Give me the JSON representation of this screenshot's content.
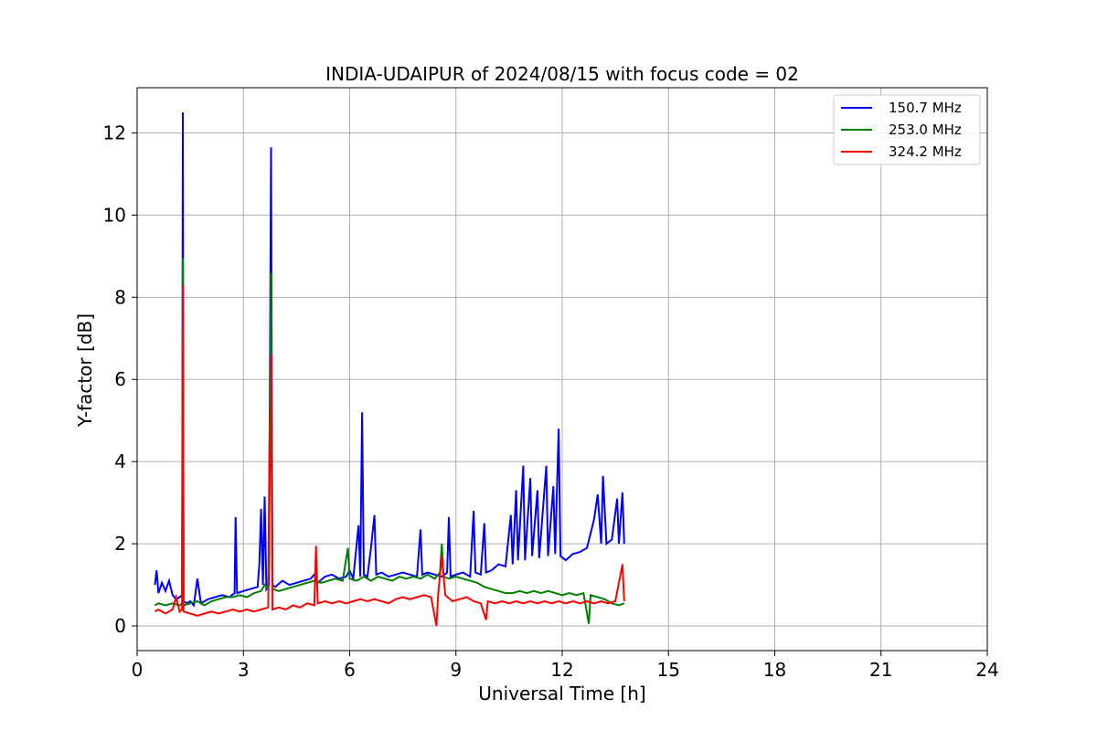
{
  "chart_data": {
    "type": "line",
    "title": "INDIA-UDAIPUR of 2024/08/15 with focus code = 02",
    "xlabel": "Universal Time [h]",
    "ylabel": "Y-factor [dB]",
    "xlim": [
      0,
      24
    ],
    "ylim": [
      -0.6,
      13.1
    ],
    "xticks": [
      0,
      3,
      6,
      9,
      12,
      15,
      18,
      21,
      24
    ],
    "yticks": [
      0,
      2,
      4,
      6,
      8,
      10,
      12
    ],
    "grid": true,
    "legend_position": "top-right",
    "series": [
      {
        "name": "150.7 MHz",
        "color": "#0000ff",
        "points": [
          [
            0.5,
            1.0
          ],
          [
            0.55,
            1.35
          ],
          [
            0.6,
            0.8
          ],
          [
            0.7,
            1.05
          ],
          [
            0.8,
            0.85
          ],
          [
            0.9,
            1.1
          ],
          [
            1.0,
            0.75
          ],
          [
            1.1,
            0.65
          ],
          [
            1.2,
            0.7
          ],
          [
            1.27,
            0.75
          ],
          [
            1.29,
            12.5
          ],
          [
            1.31,
            0.6
          ],
          [
            1.4,
            0.55
          ],
          [
            1.5,
            0.6
          ],
          [
            1.6,
            0.5
          ],
          [
            1.7,
            1.15
          ],
          [
            1.8,
            0.55
          ],
          [
            2.0,
            0.65
          ],
          [
            2.2,
            0.7
          ],
          [
            2.4,
            0.75
          ],
          [
            2.6,
            0.7
          ],
          [
            2.75,
            0.8
          ],
          [
            2.78,
            2.65
          ],
          [
            2.82,
            0.8
          ],
          [
            3.0,
            0.85
          ],
          [
            3.2,
            0.9
          ],
          [
            3.4,
            0.95
          ],
          [
            3.45,
            1.5
          ],
          [
            3.5,
            2.85
          ],
          [
            3.55,
            1.0
          ],
          [
            3.6,
            3.15
          ],
          [
            3.65,
            0.9
          ],
          [
            3.72,
            1.0
          ],
          [
            3.78,
            11.65
          ],
          [
            3.82,
            1.0
          ],
          [
            3.9,
            0.95
          ],
          [
            4.1,
            1.1
          ],
          [
            4.3,
            1.0
          ],
          [
            4.5,
            1.05
          ],
          [
            4.7,
            1.1
          ],
          [
            4.9,
            1.15
          ],
          [
            5.0,
            1.25
          ],
          [
            5.1,
            1.05
          ],
          [
            5.3,
            1.2
          ],
          [
            5.5,
            1.25
          ],
          [
            5.7,
            1.15
          ],
          [
            5.9,
            1.2
          ],
          [
            6.0,
            1.35
          ],
          [
            6.1,
            1.15
          ],
          [
            6.25,
            2.45
          ],
          [
            6.3,
            1.2
          ],
          [
            6.35,
            5.2
          ],
          [
            6.4,
            1.25
          ],
          [
            6.5,
            1.2
          ],
          [
            6.6,
            1.9
          ],
          [
            6.7,
            2.7
          ],
          [
            6.75,
            1.25
          ],
          [
            6.9,
            1.3
          ],
          [
            7.1,
            1.2
          ],
          [
            7.3,
            1.25
          ],
          [
            7.5,
            1.3
          ],
          [
            7.7,
            1.25
          ],
          [
            7.9,
            1.2
          ],
          [
            8.0,
            2.35
          ],
          [
            8.05,
            1.25
          ],
          [
            8.2,
            1.3
          ],
          [
            8.4,
            1.25
          ],
          [
            8.6,
            1.2
          ],
          [
            8.75,
            1.3
          ],
          [
            8.8,
            2.65
          ],
          [
            8.85,
            1.2
          ],
          [
            9.0,
            1.25
          ],
          [
            9.2,
            1.3
          ],
          [
            9.4,
            1.2
          ],
          [
            9.5,
            2.8
          ],
          [
            9.55,
            1.3
          ],
          [
            9.7,
            1.25
          ],
          [
            9.8,
            2.5
          ],
          [
            9.85,
            1.3
          ],
          [
            10.0,
            1.35
          ],
          [
            10.2,
            1.5
          ],
          [
            10.4,
            1.45
          ],
          [
            10.55,
            2.7
          ],
          [
            10.6,
            1.5
          ],
          [
            10.7,
            3.3
          ],
          [
            10.75,
            1.6
          ],
          [
            10.9,
            3.9
          ],
          [
            10.95,
            1.6
          ],
          [
            11.1,
            3.6
          ],
          [
            11.15,
            1.7
          ],
          [
            11.3,
            3.3
          ],
          [
            11.35,
            1.65
          ],
          [
            11.55,
            3.9
          ],
          [
            11.6,
            1.7
          ],
          [
            11.75,
            3.4
          ],
          [
            11.8,
            1.75
          ],
          [
            11.9,
            4.8
          ],
          [
            11.95,
            1.7
          ],
          [
            12.1,
            1.6
          ],
          [
            12.3,
            1.75
          ],
          [
            12.5,
            1.8
          ],
          [
            12.7,
            1.9
          ],
          [
            12.9,
            2.6
          ],
          [
            13.0,
            3.2
          ],
          [
            13.1,
            2.0
          ],
          [
            13.15,
            3.65
          ],
          [
            13.25,
            2.0
          ],
          [
            13.4,
            2.1
          ],
          [
            13.55,
            3.1
          ],
          [
            13.6,
            2.0
          ],
          [
            13.7,
            3.25
          ],
          [
            13.75,
            2.0
          ]
        ]
      },
      {
        "name": "253.0 MHz",
        "color": "#008000",
        "points": [
          [
            0.5,
            0.5
          ],
          [
            0.6,
            0.55
          ],
          [
            0.8,
            0.5
          ],
          [
            1.0,
            0.55
          ],
          [
            1.2,
            0.5
          ],
          [
            1.27,
            0.55
          ],
          [
            1.29,
            8.95
          ],
          [
            1.31,
            0.5
          ],
          [
            1.5,
            0.55
          ],
          [
            1.7,
            0.6
          ],
          [
            1.9,
            0.5
          ],
          [
            2.1,
            0.6
          ],
          [
            2.3,
            0.65
          ],
          [
            2.5,
            0.7
          ],
          [
            2.7,
            0.7
          ],
          [
            2.9,
            0.75
          ],
          [
            3.1,
            0.7
          ],
          [
            3.3,
            0.8
          ],
          [
            3.5,
            0.85
          ],
          [
            3.6,
            1.0
          ],
          [
            3.7,
            0.9
          ],
          [
            3.78,
            8.6
          ],
          [
            3.82,
            0.9
          ],
          [
            4.0,
            0.85
          ],
          [
            4.2,
            0.9
          ],
          [
            4.4,
            0.95
          ],
          [
            4.6,
            1.0
          ],
          [
            4.8,
            1.05
          ],
          [
            5.0,
            1.1
          ],
          [
            5.2,
            1.05
          ],
          [
            5.4,
            1.1
          ],
          [
            5.6,
            1.15
          ],
          [
            5.8,
            1.1
          ],
          [
            5.95,
            1.9
          ],
          [
            6.0,
            1.15
          ],
          [
            6.2,
            1.1
          ],
          [
            6.4,
            1.2
          ],
          [
            6.6,
            1.1
          ],
          [
            6.8,
            1.2
          ],
          [
            7.0,
            1.15
          ],
          [
            7.2,
            1.1
          ],
          [
            7.4,
            1.2
          ],
          [
            7.6,
            1.15
          ],
          [
            7.8,
            1.2
          ],
          [
            8.0,
            1.15
          ],
          [
            8.2,
            1.25
          ],
          [
            8.4,
            1.15
          ],
          [
            8.55,
            1.3
          ],
          [
            8.6,
            2.0
          ],
          [
            8.65,
            1.2
          ],
          [
            8.8,
            1.15
          ],
          [
            9.0,
            1.2
          ],
          [
            9.2,
            1.15
          ],
          [
            9.4,
            1.1
          ],
          [
            9.6,
            1.05
          ],
          [
            9.8,
            0.95
          ],
          [
            10.0,
            0.9
          ],
          [
            10.2,
            0.85
          ],
          [
            10.4,
            0.8
          ],
          [
            10.6,
            0.8
          ],
          [
            10.8,
            0.85
          ],
          [
            11.0,
            0.8
          ],
          [
            11.2,
            0.85
          ],
          [
            11.4,
            0.8
          ],
          [
            11.6,
            0.85
          ],
          [
            11.8,
            0.8
          ],
          [
            12.0,
            0.75
          ],
          [
            12.2,
            0.8
          ],
          [
            12.4,
            0.75
          ],
          [
            12.6,
            0.8
          ],
          [
            12.75,
            0.05
          ],
          [
            12.8,
            0.75
          ],
          [
            13.0,
            0.7
          ],
          [
            13.2,
            0.65
          ],
          [
            13.4,
            0.55
          ],
          [
            13.6,
            0.5
          ],
          [
            13.75,
            0.55
          ]
        ]
      },
      {
        "name": "324.2 MHz",
        "color": "#ff0000",
        "points": [
          [
            0.5,
            0.35
          ],
          [
            0.6,
            0.4
          ],
          [
            0.8,
            0.3
          ],
          [
            1.0,
            0.4
          ],
          [
            1.1,
            0.7
          ],
          [
            1.2,
            0.35
          ],
          [
            1.27,
            0.4
          ],
          [
            1.29,
            8.3
          ],
          [
            1.31,
            0.35
          ],
          [
            1.5,
            0.3
          ],
          [
            1.7,
            0.25
          ],
          [
            1.9,
            0.3
          ],
          [
            2.1,
            0.35
          ],
          [
            2.3,
            0.3
          ],
          [
            2.5,
            0.35
          ],
          [
            2.7,
            0.4
          ],
          [
            2.9,
            0.35
          ],
          [
            3.1,
            0.4
          ],
          [
            3.3,
            0.35
          ],
          [
            3.5,
            0.4
          ],
          [
            3.7,
            0.45
          ],
          [
            3.78,
            6.6
          ],
          [
            3.82,
            0.4
          ],
          [
            4.0,
            0.45
          ],
          [
            4.2,
            0.4
          ],
          [
            4.4,
            0.5
          ],
          [
            4.6,
            0.45
          ],
          [
            4.8,
            0.55
          ],
          [
            5.0,
            0.5
          ],
          [
            5.05,
            1.95
          ],
          [
            5.1,
            0.55
          ],
          [
            5.3,
            0.6
          ],
          [
            5.5,
            0.55
          ],
          [
            5.7,
            0.6
          ],
          [
            5.9,
            0.55
          ],
          [
            6.1,
            0.6
          ],
          [
            6.3,
            0.65
          ],
          [
            6.5,
            0.6
          ],
          [
            6.7,
            0.65
          ],
          [
            6.9,
            0.6
          ],
          [
            7.1,
            0.55
          ],
          [
            7.3,
            0.65
          ],
          [
            7.5,
            0.7
          ],
          [
            7.7,
            0.65
          ],
          [
            7.9,
            0.7
          ],
          [
            8.1,
            0.75
          ],
          [
            8.3,
            0.7
          ],
          [
            8.45,
            0.0
          ],
          [
            8.5,
            0.8
          ],
          [
            8.6,
            1.7
          ],
          [
            8.7,
            0.75
          ],
          [
            8.9,
            0.6
          ],
          [
            9.1,
            0.65
          ],
          [
            9.3,
            0.7
          ],
          [
            9.5,
            0.6
          ],
          [
            9.7,
            0.55
          ],
          [
            9.85,
            0.15
          ],
          [
            9.9,
            0.6
          ],
          [
            10.1,
            0.55
          ],
          [
            10.3,
            0.6
          ],
          [
            10.5,
            0.55
          ],
          [
            10.7,
            0.6
          ],
          [
            10.9,
            0.55
          ],
          [
            11.1,
            0.6
          ],
          [
            11.3,
            0.55
          ],
          [
            11.5,
            0.6
          ],
          [
            11.7,
            0.55
          ],
          [
            11.9,
            0.6
          ],
          [
            12.1,
            0.55
          ],
          [
            12.3,
            0.6
          ],
          [
            12.5,
            0.55
          ],
          [
            12.7,
            0.6
          ],
          [
            12.9,
            0.55
          ],
          [
            13.1,
            0.6
          ],
          [
            13.3,
            0.55
          ],
          [
            13.5,
            0.6
          ],
          [
            13.7,
            1.5
          ],
          [
            13.75,
            0.6
          ]
        ]
      }
    ]
  }
}
